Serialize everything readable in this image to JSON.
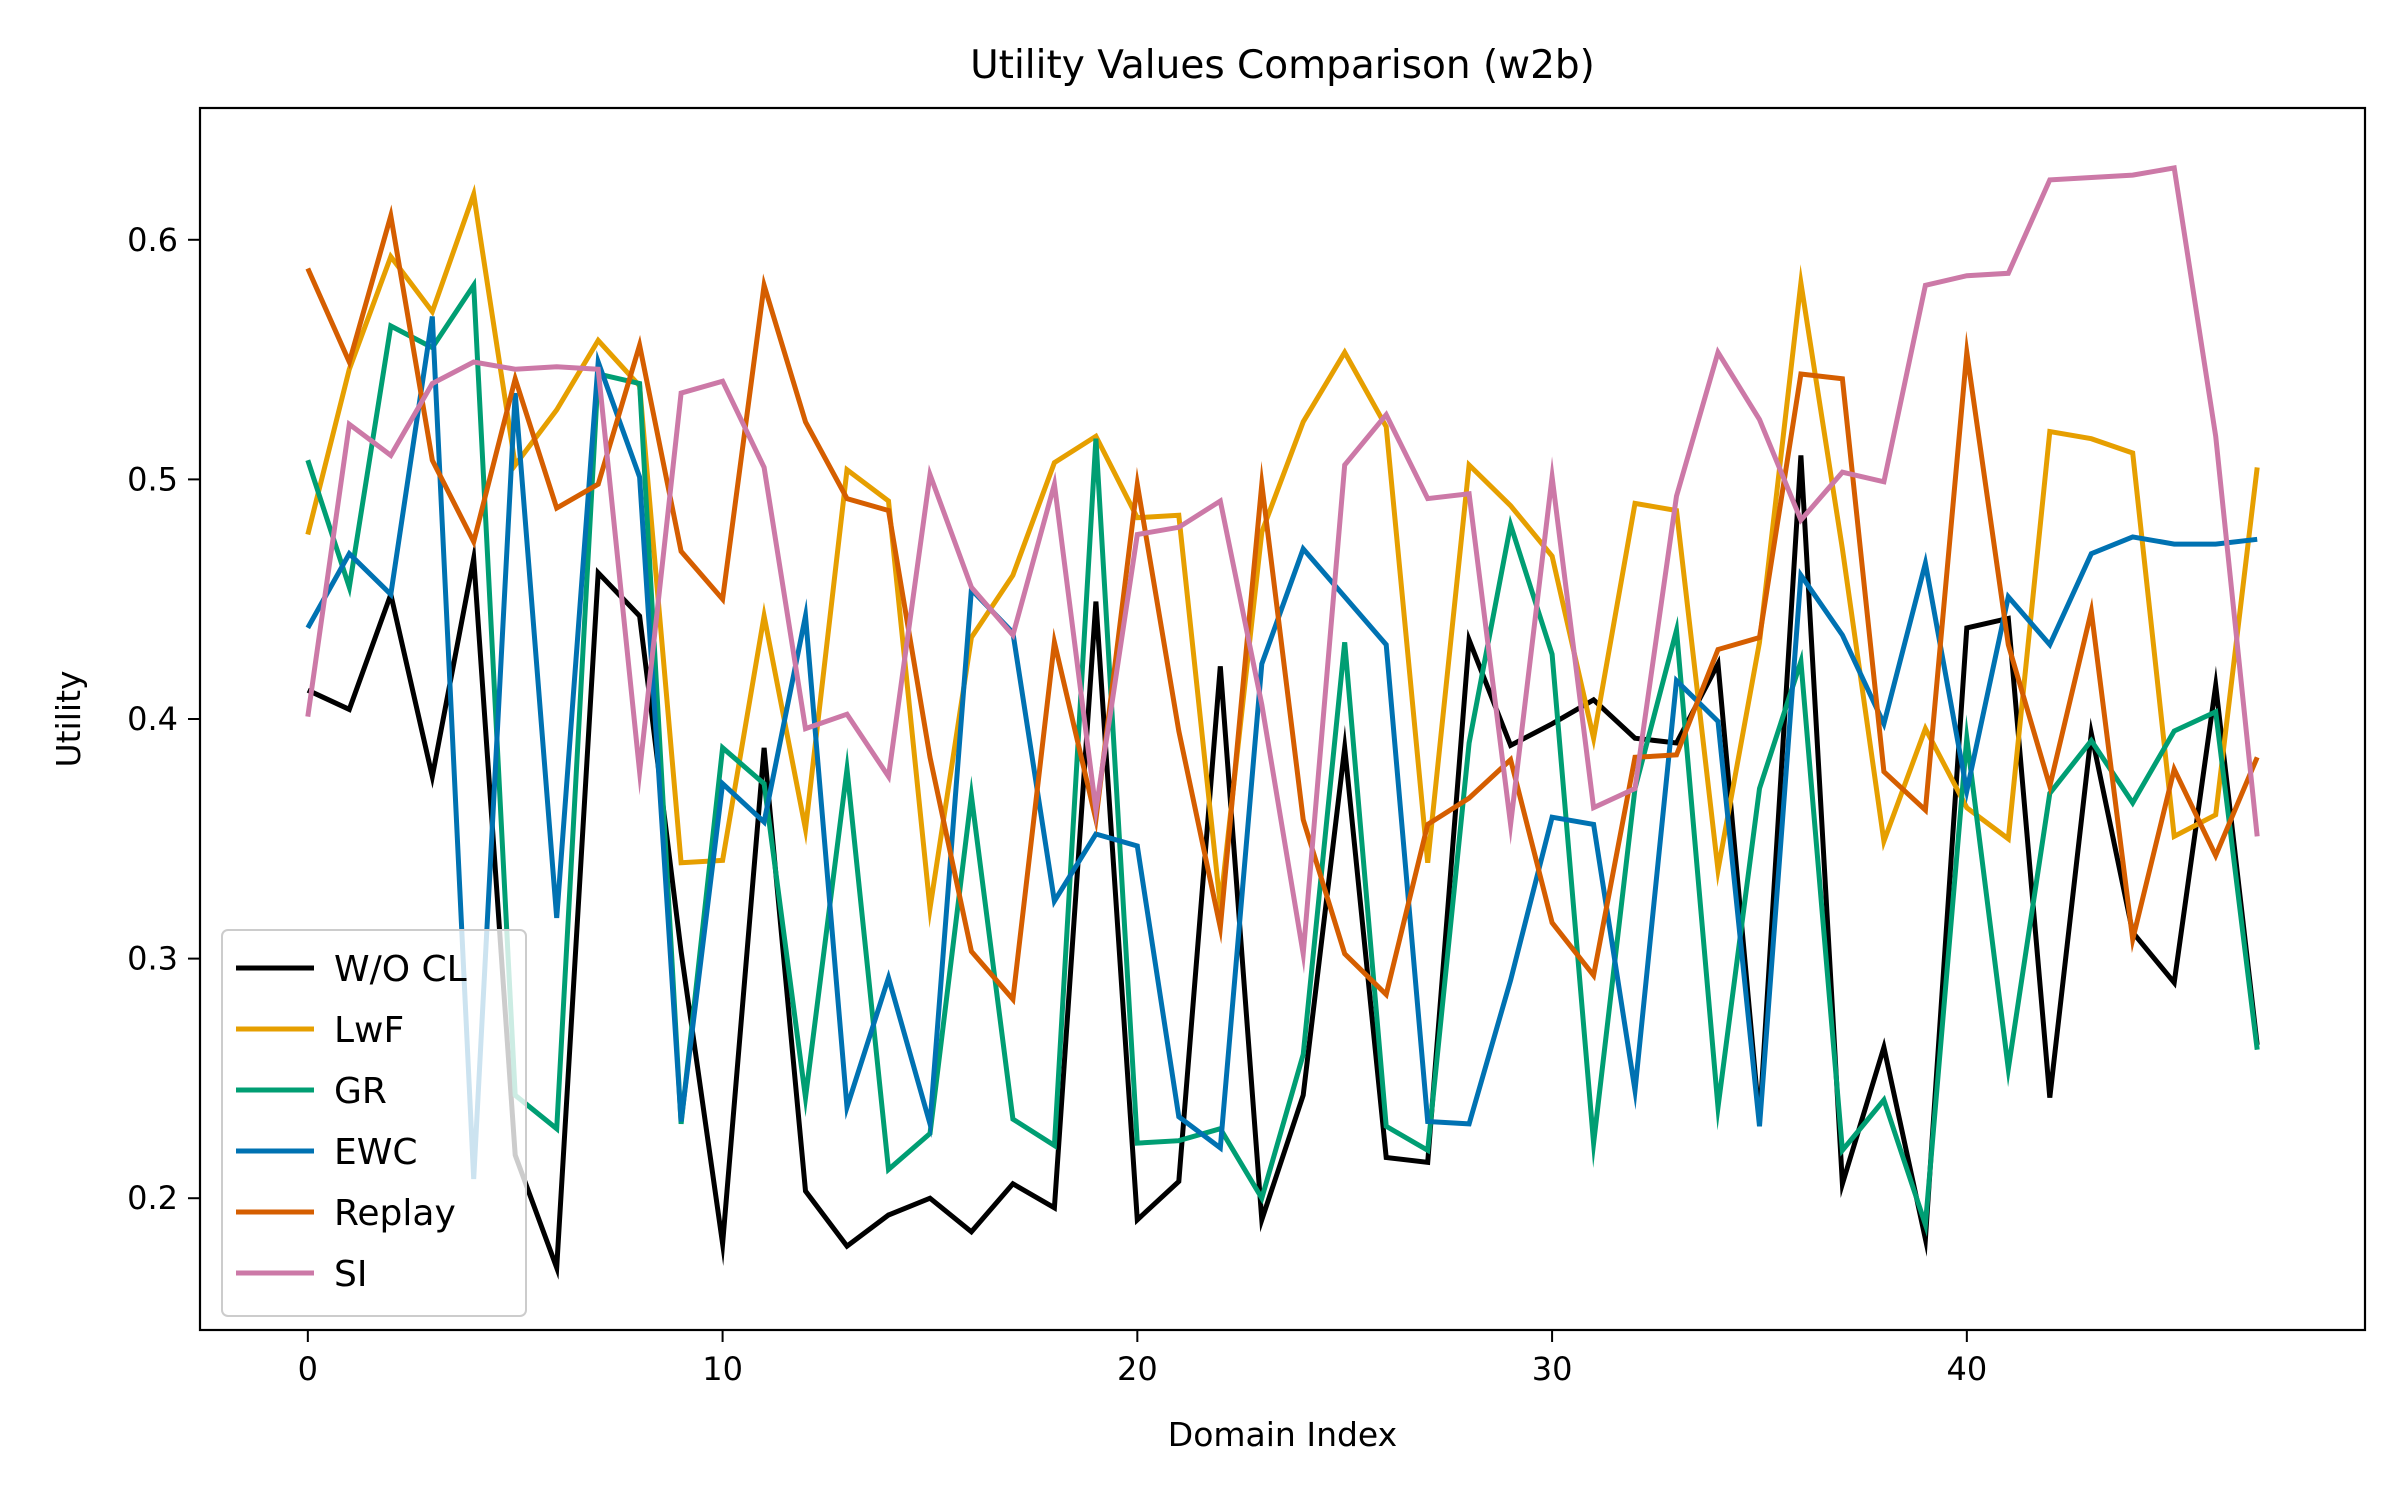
{
  "chart_data": {
    "type": "line",
    "title": "Utility Values Comparison (w2b)",
    "xlabel": "Domain Index",
    "ylabel": "Utility",
    "xlim": [
      -2.6,
      49.6
    ],
    "ylim": [
      0.145,
      0.655
    ],
    "xticks": [
      0,
      10,
      20,
      30,
      40
    ],
    "xtick_labels": [
      "0",
      "10",
      "20",
      "30",
      "40"
    ],
    "yticks": [
      0.2,
      0.3,
      0.4,
      0.5,
      0.6
    ],
    "ytick_labels": [
      "0.2",
      "0.3",
      "0.4",
      "0.5",
      "0.6"
    ],
    "grid": false,
    "legend_position": "lower-left",
    "x": [
      0,
      1,
      2,
      3,
      4,
      5,
      6,
      7,
      8,
      9,
      10,
      11,
      12,
      13,
      14,
      15,
      16,
      17,
      18,
      19,
      20,
      21,
      22,
      23,
      24,
      25,
      26,
      27,
      28,
      29,
      30,
      31,
      32,
      33,
      34,
      35,
      36,
      37,
      38,
      39,
      40,
      41,
      42,
      43,
      44,
      45,
      46,
      47
    ],
    "series": [
      {
        "name": "W/O CL",
        "color": "#000000",
        "values": [
          0.412,
          0.404,
          0.452,
          0.376,
          0.467,
          0.218,
          0.171,
          0.461,
          0.443,
          0.303,
          0.181,
          0.388,
          0.203,
          0.18,
          0.193,
          0.2,
          0.186,
          0.206,
          0.196,
          0.449,
          0.191,
          0.207,
          0.422,
          0.191,
          0.243,
          0.388,
          0.217,
          0.215,
          0.433,
          0.389,
          0.398,
          0.408,
          0.392,
          0.39,
          0.423,
          0.232,
          0.51,
          0.206,
          0.263,
          0.183,
          0.438,
          0.442,
          0.242,
          0.394,
          0.311,
          0.29,
          0.414,
          0.264
        ]
      },
      {
        "name": "LwF",
        "color": "#E69F00",
        "values": [
          0.477,
          0.546,
          0.593,
          0.57,
          0.619,
          0.506,
          0.529,
          0.558,
          0.539,
          0.34,
          0.341,
          0.443,
          0.354,
          0.504,
          0.491,
          0.321,
          0.434,
          0.46,
          0.507,
          0.518,
          0.484,
          0.485,
          0.322,
          0.478,
          0.524,
          0.553,
          0.522,
          0.34,
          0.506,
          0.489,
          0.468,
          0.392,
          0.49,
          0.487,
          0.337,
          0.432,
          0.582,
          0.471,
          0.349,
          0.396,
          0.363,
          0.35,
          0.52,
          0.517,
          0.511,
          0.351,
          0.36,
          0.505
        ]
      },
      {
        "name": "GR",
        "color": "#009E73",
        "values": [
          0.508,
          0.455,
          0.564,
          0.555,
          0.581,
          0.243,
          0.229,
          0.544,
          0.54,
          0.231,
          0.388,
          0.373,
          0.242,
          0.379,
          0.212,
          0.227,
          0.368,
          0.233,
          0.222,
          0.517,
          0.223,
          0.224,
          0.229,
          0.2,
          0.26,
          0.432,
          0.23,
          0.22,
          0.39,
          0.481,
          0.427,
          0.223,
          0.371,
          0.437,
          0.238,
          0.371,
          0.424,
          0.22,
          0.241,
          0.189,
          0.392,
          0.254,
          0.369,
          0.391,
          0.365,
          0.395,
          0.403,
          0.262
        ]
      },
      {
        "name": "EWC",
        "color": "#0072B2",
        "values": [
          0.438,
          0.469,
          0.452,
          0.568,
          0.208,
          0.536,
          0.317,
          0.549,
          0.501,
          0.232,
          0.373,
          0.357,
          0.443,
          0.238,
          0.292,
          0.231,
          0.454,
          0.436,
          0.324,
          0.352,
          0.347,
          0.234,
          0.221,
          0.423,
          0.471,
          0.451,
          0.431,
          0.232,
          0.231,
          0.291,
          0.359,
          0.356,
          0.245,
          0.416,
          0.399,
          0.23,
          0.46,
          0.435,
          0.398,
          0.465,
          0.37,
          0.451,
          0.431,
          0.469,
          0.476,
          0.473,
          0.473,
          0.475
        ]
      },
      {
        "name": "Replay",
        "color": "#D55E00",
        "values": [
          0.588,
          0.549,
          0.61,
          0.508,
          0.474,
          0.542,
          0.488,
          0.498,
          0.556,
          0.47,
          0.45,
          0.581,
          0.524,
          0.492,
          0.487,
          0.384,
          0.303,
          0.283,
          0.432,
          0.358,
          0.498,
          0.395,
          0.313,
          0.498,
          0.358,
          0.302,
          0.285,
          0.356,
          0.367,
          0.383,
          0.315,
          0.293,
          0.384,
          0.385,
          0.429,
          0.434,
          0.544,
          0.542,
          0.378,
          0.362,
          0.553,
          0.431,
          0.372,
          0.445,
          0.308,
          0.379,
          0.343,
          0.384
        ]
      },
      {
        "name": "SI",
        "color": "#CC79A7",
        "values": [
          0.401,
          0.523,
          0.51,
          0.54,
          0.549,
          0.546,
          0.547,
          0.546,
          0.378,
          0.536,
          0.541,
          0.505,
          0.396,
          0.402,
          0.376,
          0.502,
          0.455,
          0.435,
          0.498,
          0.362,
          0.477,
          0.48,
          0.491,
          0.406,
          0.302,
          0.506,
          0.527,
          0.492,
          0.494,
          0.356,
          0.501,
          0.363,
          0.371,
          0.493,
          0.553,
          0.525,
          0.483,
          0.503,
          0.499,
          0.581,
          0.585,
          0.586,
          0.625,
          0.626,
          0.627,
          0.63,
          0.518,
          0.351
        ]
      }
    ]
  }
}
